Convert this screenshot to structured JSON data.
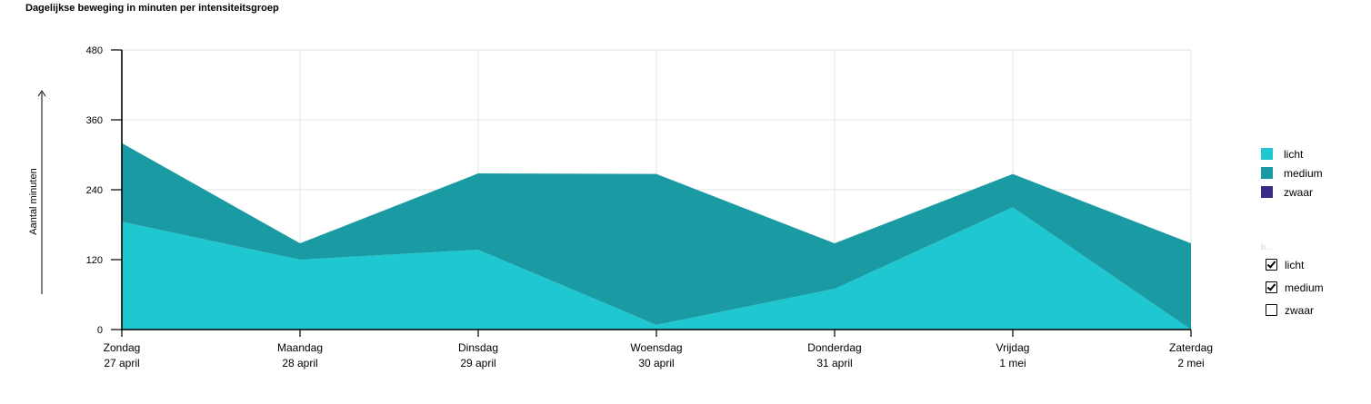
{
  "title": "Dagelijkse beweging in minuten per intensiteitsgroep",
  "chart_data": {
    "type": "area",
    "stacked": true,
    "title": "Dagelijkse beweging in minuten per intensiteitsgroep",
    "ylabel": "Aantal minuten",
    "xlabel": "",
    "ylim": [
      0,
      480
    ],
    "yticks": [
      0,
      120,
      240,
      360,
      480
    ],
    "grid": true,
    "legend_position": "right",
    "categories": [
      {
        "day": "Zondag",
        "date": "27 april"
      },
      {
        "day": "Maandag",
        "date": "28 april"
      },
      {
        "day": "Dinsdag",
        "date": "29 april"
      },
      {
        "day": "Woensdag",
        "date": "30 april"
      },
      {
        "day": "Donderdag",
        "date": "31 april"
      },
      {
        "day": "Vrijdag",
        "date": "1 mei"
      },
      {
        "day": "Zaterdag",
        "date": "2 mei"
      }
    ],
    "series": [
      {
        "name": "licht",
        "color": "#1fc7d1",
        "values": [
          185,
          120,
          137,
          8,
          70,
          210,
          0
        ]
      },
      {
        "name": "medium",
        "color": "#1a9aa2",
        "values": [
          135,
          28,
          131,
          259,
          78,
          57,
          148
        ]
      },
      {
        "name": "zwaar",
        "color": "#3b2a86",
        "values": [
          0,
          0,
          0,
          0,
          0,
          0,
          0
        ]
      }
    ]
  },
  "legend": {
    "items": [
      {
        "label": "licht",
        "color": "#1fc7d1"
      },
      {
        "label": "medium",
        "color": "#1a9aa2"
      },
      {
        "label": "zwaar",
        "color": "#3b2a86"
      }
    ]
  },
  "filter": {
    "hint": "b...",
    "items": [
      {
        "label": "licht",
        "checked": true
      },
      {
        "label": "medium",
        "checked": true
      },
      {
        "label": "zwaar",
        "checked": false
      }
    ]
  }
}
